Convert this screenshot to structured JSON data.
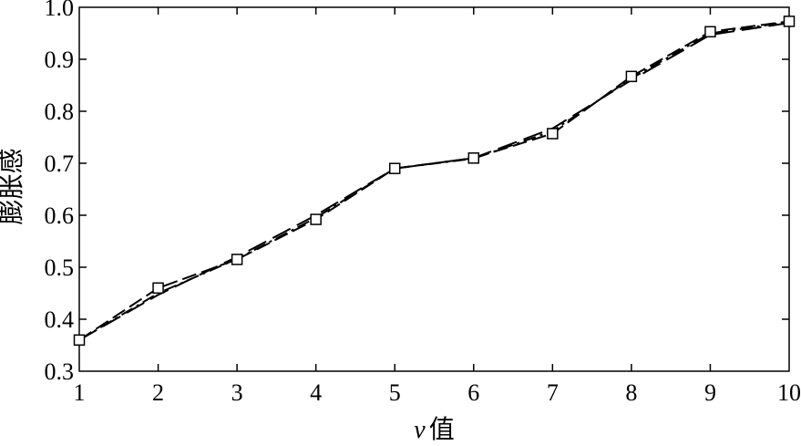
{
  "chart_data": {
    "type": "line",
    "x": [
      1,
      2,
      3,
      4,
      5,
      6,
      7,
      8,
      9,
      10
    ],
    "xlim": [
      1,
      10
    ],
    "ylim": [
      0.3,
      1.0
    ],
    "xticks": [
      "1",
      "2",
      "3",
      "4",
      "5",
      "6",
      "7",
      "8",
      "9",
      "10"
    ],
    "yticks": [
      "0.3",
      "0.4",
      "0.5",
      "0.6",
      "0.7",
      "0.8",
      "0.9",
      "1.0"
    ],
    "xlabel_var": "v",
    "xlabel_text": "值",
    "ylabel": "膨胀感",
    "grid": false,
    "series": [
      {
        "style": "dashed-square-markers",
        "values": [
          0.36,
          0.46,
          0.515,
          0.592,
          0.69,
          0.71,
          0.757,
          0.867,
          0.953,
          0.973
        ]
      },
      {
        "style": "dashed",
        "values": [
          0.36,
          0.447,
          0.52,
          0.6,
          0.69,
          0.71,
          0.767,
          0.86,
          0.947,
          0.97
        ]
      },
      {
        "style": "dash-dot",
        "values": [
          0.36,
          0.45,
          0.516,
          0.595,
          0.69,
          0.709,
          0.762,
          0.863,
          0.95,
          0.972
        ]
      }
    ]
  }
}
